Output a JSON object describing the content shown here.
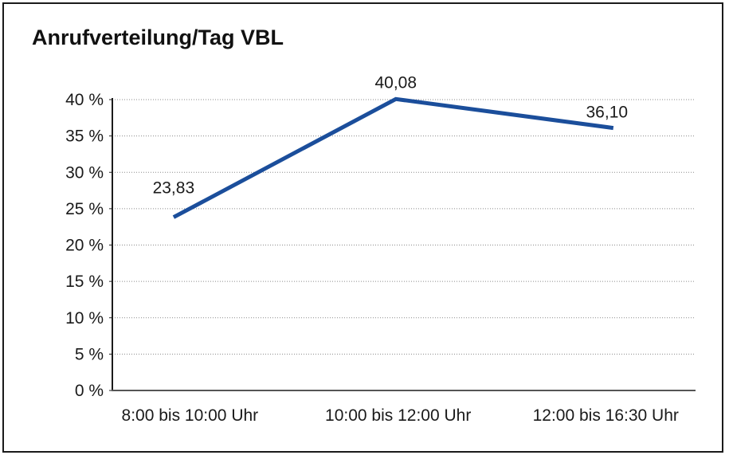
{
  "chart_data": {
    "type": "line",
    "title": "Anrufverteilung/Tag VBL",
    "categories": [
      "8:00 bis 10:00 Uhr",
      "10:00 bis 12:00 Uhr",
      "12:00 bis 16:30 Uhr"
    ],
    "series": [
      {
        "name": "Anrufverteilung/Tag VBL",
        "values": [
          23.83,
          40.08,
          36.1
        ],
        "color": "#1b4e9b"
      }
    ],
    "data_labels": [
      "23,83",
      "40,08",
      "36,10"
    ],
    "xlabel": "",
    "ylabel": "",
    "ylim": [
      0,
      40
    ],
    "yticks": [
      0,
      5,
      10,
      15,
      20,
      25,
      30,
      35,
      40
    ],
    "ytick_labels": [
      "0 %",
      "5 %",
      "10 %",
      "15 %",
      "20 %",
      "25 %",
      "30 %",
      "35 %",
      "40 %"
    ],
    "grid": "horizontal dotted",
    "legend": "none",
    "colors": {
      "line": "#1b4e9b",
      "gridline": "#8a8a8a",
      "y_axis": "#1a1a1a",
      "x_axis": "#555555",
      "text": "#1a1a1a",
      "frame_border": "#1a1a1a",
      "background": "#ffffff"
    }
  }
}
